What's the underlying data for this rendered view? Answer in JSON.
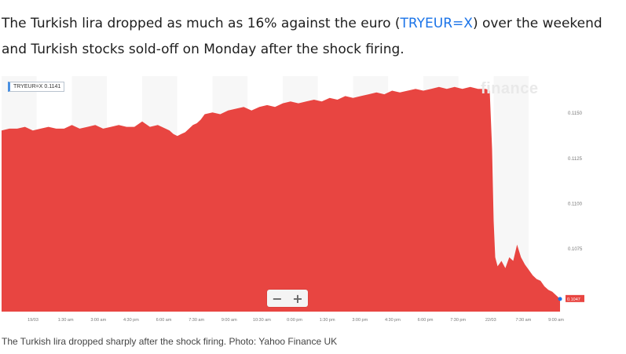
{
  "article": {
    "lead_before": "The Turkish lira dropped as much as 16% against the euro (",
    "lead_link": "TRYEUR=X",
    "lead_after": ") over the weekend and Turkish stocks sold-off on Monday after the shock firing.",
    "caption": "The Turkish lira dropped sharply after the shock firing. Photo: Yahoo Finance UK"
  },
  "widget": {
    "ticker_label": "TRYEUR=X 0.1141",
    "watermark": "finance",
    "zoom_out": "−",
    "zoom_in": "+",
    "last_price_tag": "0.1047",
    "fill_color": "#e84541"
  },
  "chart_data": {
    "type": "area",
    "title": "",
    "xlabel": "",
    "ylabel": "",
    "ylim": [
      0.104,
      0.117
    ],
    "y_ticks": [
      "0.1150",
      "0.1125",
      "0.1100",
      "0.1075"
    ],
    "x_ticks": [
      "19/03",
      "1:30 am",
      "3:00 am",
      "4:30 pm",
      "6:00 am",
      "7:30 am",
      "9:00 am",
      "10:30 am",
      "0:00 pm",
      "1:30 pm",
      "3:00 pm",
      "4:30 pm",
      "6:00 pm",
      "7:30 pm",
      "22/03",
      "7:30 am",
      "9:00 am"
    ],
    "x": [
      0,
      10,
      20,
      30,
      40,
      50,
      60,
      70,
      80,
      90,
      100,
      110,
      120,
      130,
      140,
      150,
      160,
      170,
      180,
      190,
      200,
      210,
      215,
      220,
      225,
      230,
      235,
      240,
      245,
      250,
      255,
      260,
      270,
      280,
      290,
      300,
      310,
      320,
      330,
      340,
      350,
      360,
      370,
      380,
      390,
      400,
      410,
      420,
      430,
      440,
      450,
      460,
      470,
      480,
      490,
      500,
      510,
      520,
      530,
      540,
      550,
      560,
      570,
      580,
      590,
      600,
      610,
      620,
      625,
      628,
      630,
      632,
      635,
      640,
      645,
      650,
      655,
      660,
      665,
      670,
      675,
      680,
      685,
      690,
      695,
      700,
      705,
      710,
      715
    ],
    "values": [
      0.114,
      0.1141,
      0.1141,
      0.1142,
      0.114,
      0.1141,
      0.1142,
      0.1141,
      0.1141,
      0.1143,
      0.1141,
      0.1142,
      0.1143,
      0.1141,
      0.1142,
      0.1143,
      0.1142,
      0.1142,
      0.1145,
      0.1142,
      0.1143,
      0.1141,
      0.114,
      0.1138,
      0.1137,
      0.1138,
      0.1139,
      0.1141,
      0.1143,
      0.1144,
      0.1146,
      0.1149,
      0.115,
      0.1149,
      0.1151,
      0.1152,
      0.1153,
      0.1151,
      0.1153,
      0.1154,
      0.1153,
      0.1155,
      0.1156,
      0.1155,
      0.1156,
      0.1157,
      0.1156,
      0.1158,
      0.1157,
      0.1159,
      0.1158,
      0.1159,
      0.116,
      0.1161,
      0.116,
      0.1162,
      0.1161,
      0.1162,
      0.1163,
      0.1162,
      0.1163,
      0.1164,
      0.1163,
      0.1164,
      0.1163,
      0.1164,
      0.1163,
      0.1163,
      0.1162,
      0.113,
      0.109,
      0.107,
      0.1065,
      0.1068,
      0.1064,
      0.107,
      0.1068,
      0.1077,
      0.107,
      0.1066,
      0.1063,
      0.106,
      0.1058,
      0.1057,
      0.1054,
      0.1052,
      0.1051,
      0.1049,
      0.1047
    ],
    "x_range": [
      0,
      720
    ]
  }
}
